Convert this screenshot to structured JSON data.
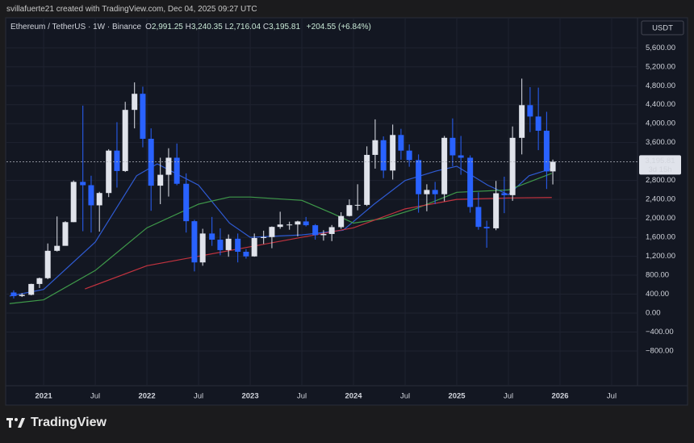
{
  "screenshot": {
    "credit": "svillafuerte21 created with TradingView.com, Dec 04, 2025 09:27 UTC",
    "brand": "TradingView"
  },
  "chart_data": {
    "type": "candlestick",
    "symbol": "Ethereum / TetherUS · 1W · Binance",
    "ohlc": [
      {
        "label": "O",
        "value": "2,991.25"
      },
      {
        "label": "H",
        "value": "3,240.35"
      },
      {
        "label": "L",
        "value": "2,716.04"
      },
      {
        "label": "C",
        "value": "3,195.81"
      }
    ],
    "change": "+204.55 (+6.84%)",
    "currency": "USDT",
    "up_color": "#e0e3eb",
    "down_color": "#2962ff",
    "xlim": [
      2020.64,
      2026.75
    ],
    "xticks": [
      {
        "value": 2021,
        "label": "2021"
      },
      {
        "value": 2021.5,
        "label": "Jul"
      },
      {
        "value": 2022,
        "label": "2022"
      },
      {
        "value": 2022.5,
        "label": "Jul"
      },
      {
        "value": 2023,
        "label": "2023"
      },
      {
        "value": 2023.5,
        "label": "Jul"
      },
      {
        "value": 2024,
        "label": "2024"
      },
      {
        "value": 2024.5,
        "label": "Jul"
      },
      {
        "value": 2025,
        "label": "2025"
      },
      {
        "value": 2025.5,
        "label": "Jul"
      },
      {
        "value": 2026,
        "label": "2026"
      },
      {
        "value": 2026.5,
        "label": "Jul"
      }
    ],
    "ylim": [
      -1533,
      6235
    ],
    "yticks": [
      {
        "value": -800,
        "label": "−800.00"
      },
      {
        "value": -400,
        "label": "−400.00"
      },
      {
        "value": 0,
        "label": "0.00"
      },
      {
        "value": 400,
        "label": "400.00"
      },
      {
        "value": 800,
        "label": "800.00"
      },
      {
        "value": 1200,
        "label": "1,200.00"
      },
      {
        "value": 1600,
        "label": "1,600.00"
      },
      {
        "value": 2000,
        "label": "2,000.00"
      },
      {
        "value": 2400,
        "label": "2,400.00"
      },
      {
        "value": 2800,
        "label": "2,800.00"
      },
      {
        "value": 3600,
        "label": "3,600.00"
      },
      {
        "value": 4000,
        "label": "4,000.00"
      },
      {
        "value": 4400,
        "label": "4,400.00"
      },
      {
        "value": 4800,
        "label": "4,800.00"
      },
      {
        "value": 5200,
        "label": "5,200.00"
      },
      {
        "value": 5600,
        "label": "5,600.00"
      }
    ],
    "grid": true,
    "last_price": {
      "value": 3195.81,
      "label": "3,195.81"
    },
    "countdown": "3d 15h",
    "x": [
      2020.71,
      2020.79,
      2020.88,
      2020.96,
      2021.04,
      2021.13,
      2021.21,
      2021.29,
      2021.38,
      2021.46,
      2021.54,
      2021.63,
      2021.71,
      2021.79,
      2021.88,
      2021.96,
      2022.04,
      2022.13,
      2022.21,
      2022.29,
      2022.38,
      2022.46,
      2022.54,
      2022.63,
      2022.71,
      2022.79,
      2022.88,
      2022.96,
      2023.04,
      2023.13,
      2023.21,
      2023.29,
      2023.38,
      2023.46,
      2023.54,
      2023.63,
      2023.71,
      2023.79,
      2023.88,
      2023.96,
      2024.04,
      2024.13,
      2024.21,
      2024.29,
      2024.38,
      2024.46,
      2024.54,
      2024.63,
      2024.71,
      2024.79,
      2024.88,
      2024.96,
      2025.04,
      2025.13,
      2025.21,
      2025.29,
      2025.38,
      2025.46,
      2025.54,
      2025.63,
      2025.71,
      2025.79,
      2025.87,
      2025.93
    ],
    "open": [
      435,
      360,
      386,
      615,
      737,
      1315,
      1420,
      1920,
      2770,
      2700,
      2275,
      2535,
      3430,
      3000,
      4290,
      4630,
      3680,
      2690,
      2920,
      3280,
      2730,
      1940,
      1070,
      1680,
      1550,
      1330,
      1570,
      1295,
      1197,
      1585,
      1605,
      1820,
      1870,
      1870,
      1935,
      1855,
      1645,
      1670,
      1815,
      2050,
      2280,
      2285,
      3340,
      3650,
      3010,
      3760,
      3430,
      3230,
      2510,
      2600,
      2510,
      3700,
      3330,
      3280,
      2240,
      1820,
      1790,
      2530,
      2490,
      3700,
      4390,
      4150,
      3850,
      2991.25
    ],
    "high": [
      480,
      420,
      620,
      750,
      1470,
      2040,
      1940,
      2800,
      4380,
      2900,
      2560,
      3460,
      4030,
      4460,
      4870,
      4780,
      3900,
      3280,
      3480,
      3580,
      2950,
      1970,
      1780,
      2030,
      1790,
      1660,
      1680,
      1350,
      1680,
      1740,
      1830,
      2140,
      1930,
      1950,
      2030,
      1880,
      1750,
      1860,
      2130,
      2400,
      2720,
      3520,
      4090,
      3730,
      3980,
      3890,
      3560,
      3350,
      2720,
      2770,
      3740,
      4110,
      3740,
      3330,
      2550,
      1950,
      2790,
      2880,
      3940,
      4950,
      4770,
      4760,
      4250,
      3240.35
    ],
    "low": [
      310,
      340,
      375,
      530,
      715,
      1300,
      1435,
      1920,
      1730,
      1700,
      1720,
      2450,
      2650,
      2980,
      3900,
      3500,
      2160,
      2300,
      2460,
      2700,
      1700,
      880,
      1000,
      1420,
      1220,
      1190,
      1070,
      1150,
      1190,
      1460,
      1370,
      1780,
      1760,
      1620,
      1830,
      1550,
      1530,
      1520,
      1780,
      2040,
      2170,
      2260,
      3050,
      2850,
      2820,
      3240,
      3090,
      2120,
      2150,
      2300,
      2360,
      3100,
      2920,
      2120,
      1760,
      1380,
      1750,
      2110,
      2370,
      3350,
      3820,
      3440,
      2620,
      2716.04
    ],
    "close": [
      360,
      386,
      615,
      737,
      1315,
      1420,
      1920,
      2770,
      2700,
      2275,
      2535,
      3430,
      3000,
      4290,
      4630,
      3680,
      2690,
      2920,
      3280,
      2730,
      1940,
      1070,
      1680,
      1550,
      1330,
      1570,
      1295,
      1197,
      1585,
      1605,
      1820,
      1870,
      1870,
      1935,
      1855,
      1645,
      1670,
      1815,
      2050,
      2280,
      2285,
      3340,
      3650,
      3010,
      3760,
      3430,
      3230,
      2510,
      2600,
      2510,
      3700,
      3330,
      3280,
      2240,
      1820,
      1790,
      2530,
      2490,
      3700,
      4390,
      4150,
      3850,
      2991.25,
      3195.81
    ],
    "moving_averages": [
      {
        "color": "#2f5bd3",
        "x": [
          2020.67,
          2021.0,
          2021.5,
          2021.9,
          2022.1,
          2022.5,
          2022.8,
          2023.0,
          2023.5,
          2023.9,
          2024.2,
          2024.5,
          2024.8,
          2025.0,
          2025.3,
          2025.5,
          2025.7,
          2025.92
        ],
        "values": [
          360,
          500,
          1500,
          2900,
          3150,
          2700,
          1900,
          1600,
          1650,
          1750,
          2300,
          2800,
          3000,
          3100,
          2700,
          2500,
          2900,
          3050
        ]
      },
      {
        "color": "#3f9a4a",
        "x": [
          2020.67,
          2021.0,
          2021.5,
          2022.0,
          2022.5,
          2022.8,
          2023.0,
          2023.5,
          2023.8,
          2024.0,
          2024.3,
          2024.6,
          2025.0,
          2025.5,
          2025.92
        ],
        "values": [
          200,
          280,
          900,
          1800,
          2300,
          2450,
          2450,
          2380,
          2100,
          1900,
          2000,
          2200,
          2550,
          2600,
          2950
        ]
      },
      {
        "color": "#c2333f",
        "x": [
          2021.4,
          2022.0,
          2022.5,
          2023.0,
          2023.5,
          2024.0,
          2024.5,
          2025.0,
          2025.5,
          2025.92
        ],
        "values": [
          510,
          1000,
          1200,
          1400,
          1600,
          1800,
          2200,
          2400,
          2430,
          2440
        ]
      }
    ]
  }
}
